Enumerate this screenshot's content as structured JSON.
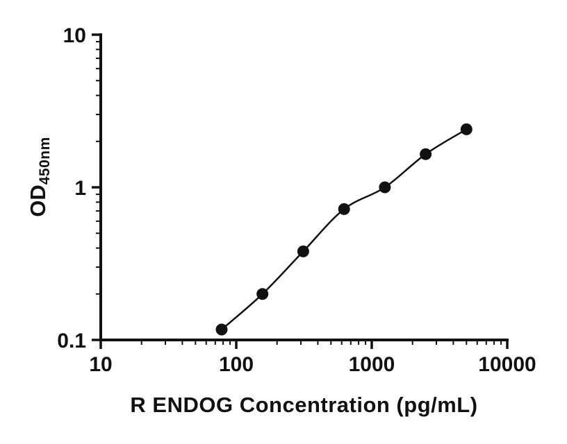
{
  "chart_data": {
    "type": "scatter",
    "title": "",
    "xlabel": "R ENDOG Concentration (pg/mL)",
    "ylabel_main": "OD",
    "ylabel_sub": "450nm",
    "x": [
      78,
      156,
      312,
      625,
      1250,
      2500,
      5000
    ],
    "y": [
      0.117,
      0.2,
      0.38,
      0.72,
      1.0,
      1.65,
      2.4
    ],
    "xscale": "log",
    "yscale": "log",
    "xlim": [
      10,
      10000
    ],
    "ylim": [
      0.1,
      10
    ],
    "x_major_ticks": [
      "10",
      "100",
      "1000",
      "10000"
    ],
    "y_major_ticks": [
      "0.1",
      "1",
      "10"
    ],
    "minor_ticks": true,
    "grid": false,
    "legend": false,
    "marker_color": "#111111",
    "line_color": "#111111",
    "axis_color": "#111111",
    "background": "#ffffff"
  }
}
